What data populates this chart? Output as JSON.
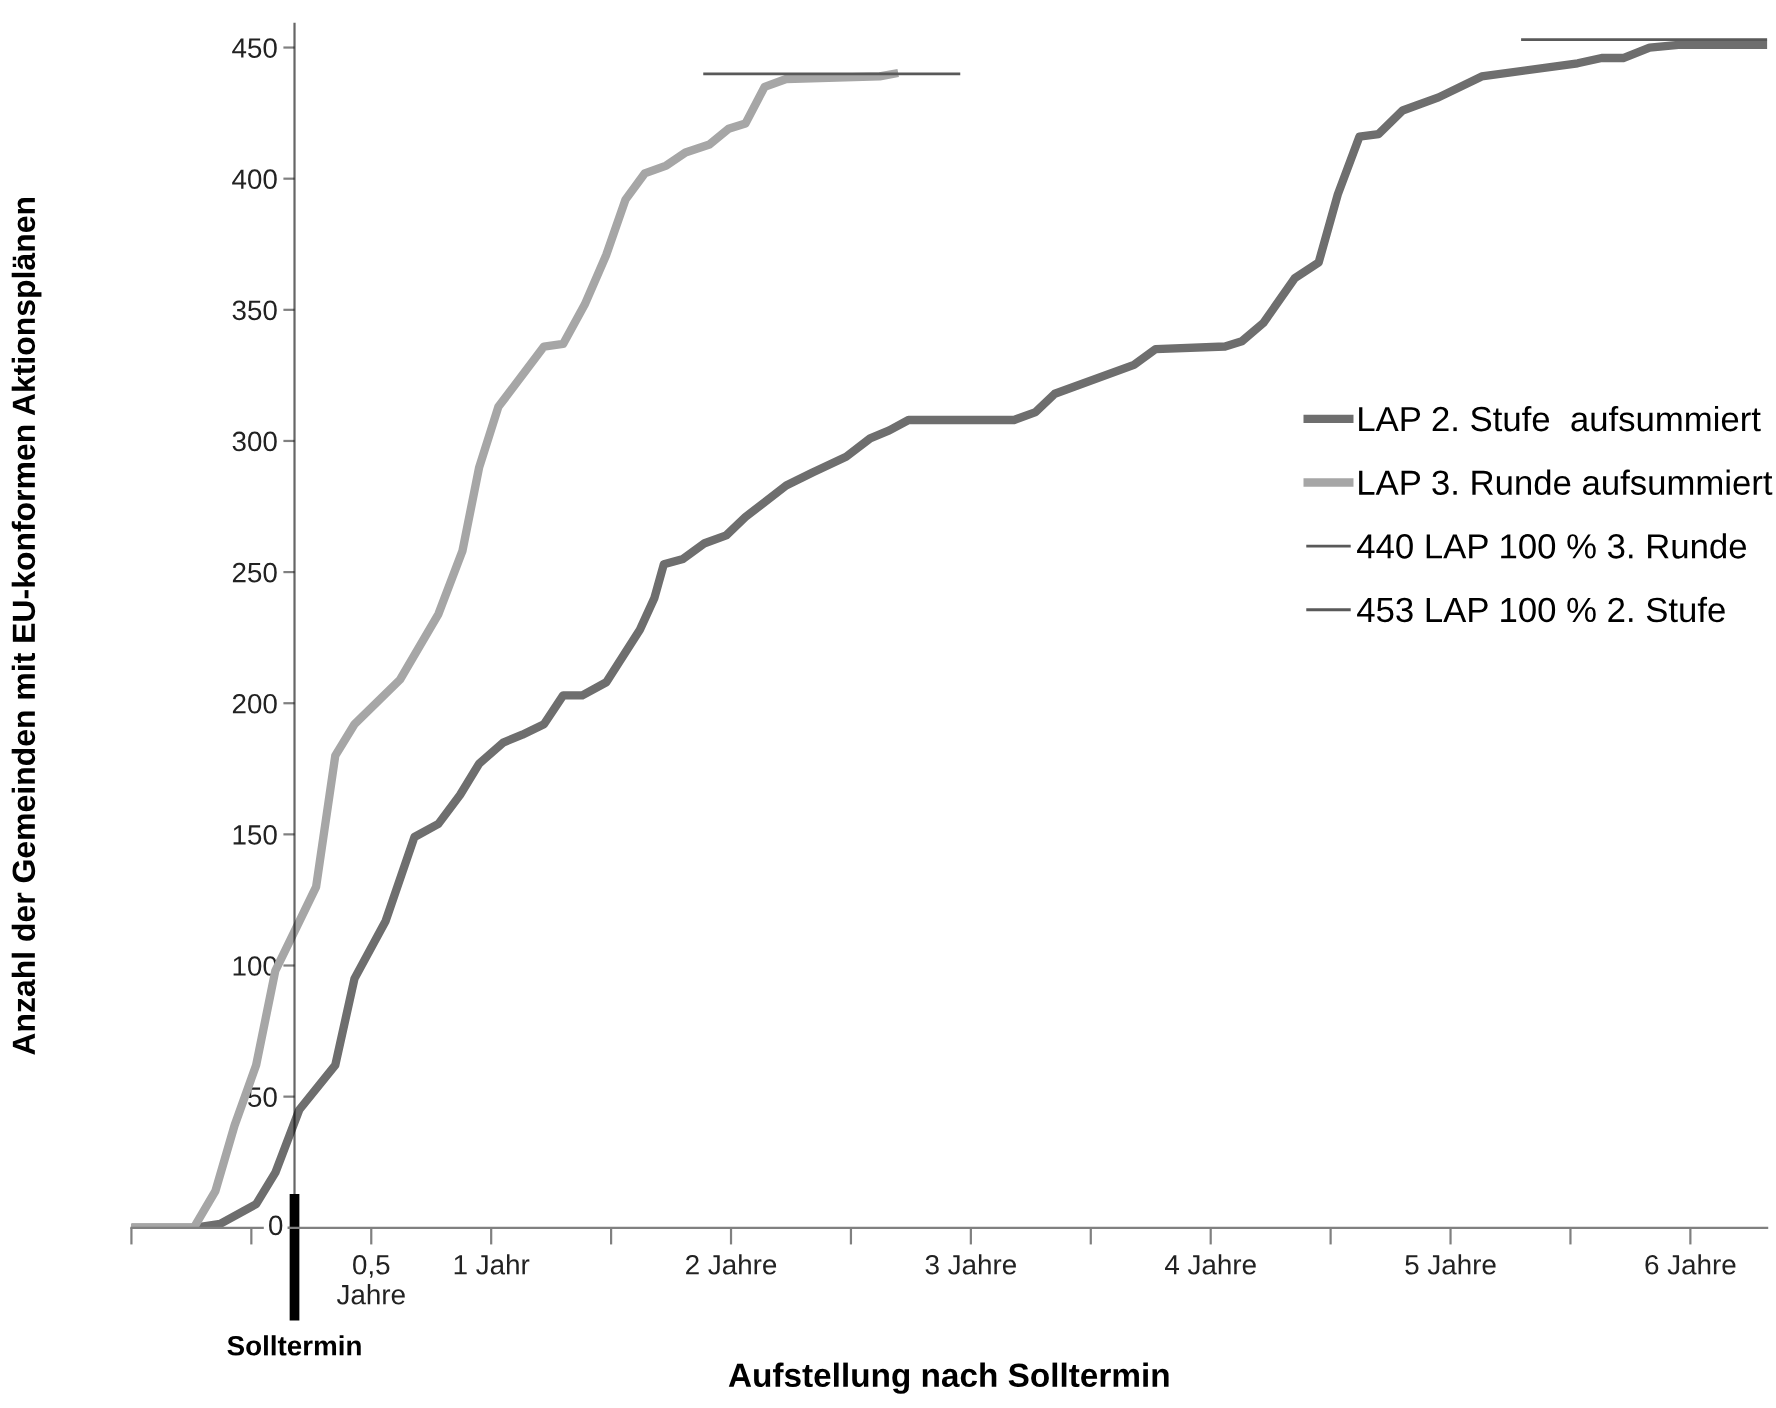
{
  "chart_data": {
    "type": "line",
    "xlabel": "Aufstellung nach Solltermin",
    "ylabel": "Anzahl der Gemeinden mit EU-konformen Aktionsplänen",
    "xlim": [
      -0.5,
      6.32
    ],
    "ylim": [
      0,
      459
    ],
    "xticks": [
      {
        "value": -0.5,
        "label": null
      },
      {
        "value": 0,
        "label": null
      },
      {
        "value": 0.5,
        "label": "0,5\nJahre"
      },
      {
        "value": 1,
        "label": "1 Jahr"
      },
      {
        "value": 1.5,
        "label": null
      },
      {
        "value": 2,
        "label": "2 Jahre"
      },
      {
        "value": 2.5,
        "label": null
      },
      {
        "value": 3,
        "label": "3 Jahre"
      },
      {
        "value": 3.5,
        "label": null
      },
      {
        "value": 4,
        "label": "4 Jahre"
      },
      {
        "value": 4.5,
        "label": null
      },
      {
        "value": 5,
        "label": "5 Jahre"
      },
      {
        "value": 5.5,
        "label": null
      },
      {
        "value": 6,
        "label": "6 Jahre"
      }
    ],
    "yticks": [
      0,
      50,
      100,
      150,
      200,
      250,
      300,
      350,
      400,
      450
    ],
    "grid": false,
    "legend": "right",
    "marker": "none",
    "line_style": "solid",
    "ref_lines": [
      {
        "axis": "x",
        "value": 0.18,
        "label": "Solltermin",
        "color": "#000000"
      }
    ],
    "series": [
      {
        "name": "LAP 2. Stufe  aufsummiert",
        "color": "#6e6e6e",
        "x": [
          -0.5,
          -0.24,
          -0.13,
          0.02,
          0.1,
          0.2,
          0.35,
          0.43,
          0.56,
          0.68,
          0.78,
          0.87,
          0.95,
          1.05,
          1.13,
          1.22,
          1.3,
          1.38,
          1.48,
          1.62,
          1.68,
          1.72,
          1.8,
          1.89,
          1.98,
          2.06,
          2.23,
          2.34,
          2.48,
          2.58,
          2.66,
          2.74,
          3.18,
          3.27,
          3.35,
          3.68,
          3.77,
          4.06,
          4.13,
          4.22,
          4.35,
          4.45,
          4.53,
          4.62,
          4.7,
          4.8,
          4.95,
          5.13,
          5.53,
          5.63,
          5.72,
          5.83,
          5.95,
          6.32
        ],
        "values": [
          0,
          0,
          1.5,
          9,
          21,
          45,
          62,
          95,
          117,
          149,
          154,
          165,
          177,
          185,
          188,
          192,
          203,
          203,
          208,
          228,
          240,
          253,
          255,
          261,
          264,
          271,
          283,
          288,
          294,
          301,
          304,
          308,
          308,
          311,
          318,
          329,
          335,
          336,
          338,
          345,
          362,
          368,
          394,
          416,
          417,
          426,
          431,
          439,
          444,
          446,
          446,
          450,
          451,
          451
        ]
      },
      {
        "name": "LAP 3. Runde aufsummiert",
        "color": "#a6a6a6",
        "x": [
          -0.5,
          -0.24,
          -0.15,
          -0.07,
          0.02,
          0.1,
          0.18,
          0.27,
          0.35,
          0.43,
          0.62,
          0.78,
          0.88,
          0.95,
          1.03,
          1.22,
          1.3,
          1.39,
          1.48,
          1.56,
          1.64,
          1.73,
          1.81,
          1.91,
          1.99,
          2.06,
          2.14,
          2.23,
          2.62,
          2.68
        ],
        "values": [
          0,
          0,
          14,
          39,
          62,
          98,
          113,
          130,
          180,
          192,
          209,
          234,
          258,
          290,
          313,
          336,
          337,
          352,
          371,
          392,
          402,
          405,
          410,
          413,
          419,
          421,
          435,
          438,
          439,
          440
        ]
      },
      {
        "name": "440 LAP 100 % 3. Runde",
        "color": "#595959",
        "x": [
          1.89,
          2.95
        ],
        "values": [
          440,
          440
        ]
      },
      {
        "name": "453 LAP 100 % 2. Stufe",
        "color": "#595959",
        "x": [
          5.3,
          6.32
        ],
        "values": [
          453,
          453
        ]
      }
    ]
  }
}
